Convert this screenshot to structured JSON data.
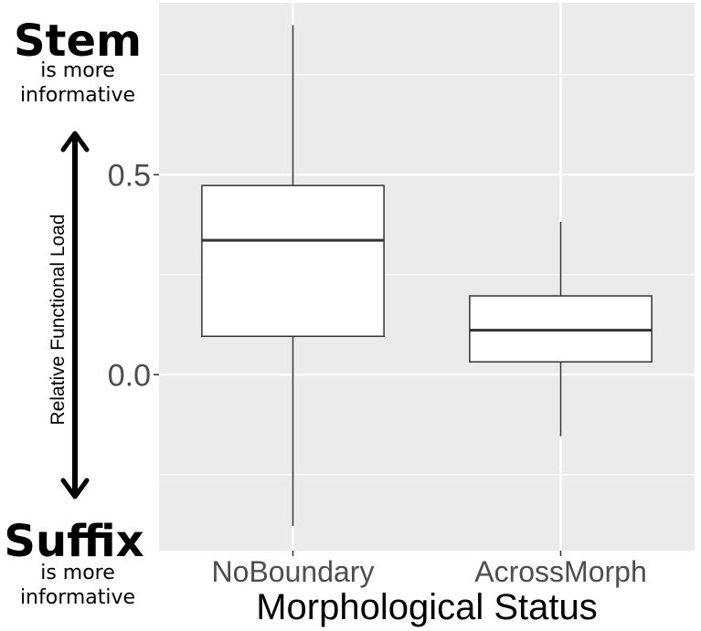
{
  "annotations": {
    "top_title": "Stem",
    "top_sub_line1": "is more",
    "top_sub_line2": "informative",
    "bottom_title": "Suffix",
    "bottom_sub_line1": "is more",
    "bottom_sub_line2": "informative"
  },
  "colors": {
    "panel": "#EBEBEB",
    "grid": "#FFFFFF",
    "box_fill": "#FFFFFF",
    "box_line": "#333333",
    "tick_text": "#4D4D4D",
    "arrow": "#000000"
  },
  "chart_data": {
    "type": "boxplot",
    "title": "",
    "xlabel": "Morphological Status",
    "ylabel": "Relative Functional Load",
    "categories": [
      "NoBoundary",
      "AcrossMorph"
    ],
    "ylim": [
      -0.44,
      0.93
    ],
    "yticks": [
      0.0,
      0.5
    ],
    "ytick_labels": [
      "0.0",
      "0.5"
    ],
    "grid": true,
    "legend": "none",
    "boxes": [
      {
        "category": "NoBoundary",
        "whisker_low": -0.378,
        "q1": 0.096,
        "median": 0.336,
        "q3": 0.473,
        "whisker_high": 0.874
      },
      {
        "category": "AcrossMorph",
        "whisker_low": -0.154,
        "q1": 0.032,
        "median": 0.111,
        "q3": 0.197,
        "whisker_high": 0.382
      }
    ]
  }
}
